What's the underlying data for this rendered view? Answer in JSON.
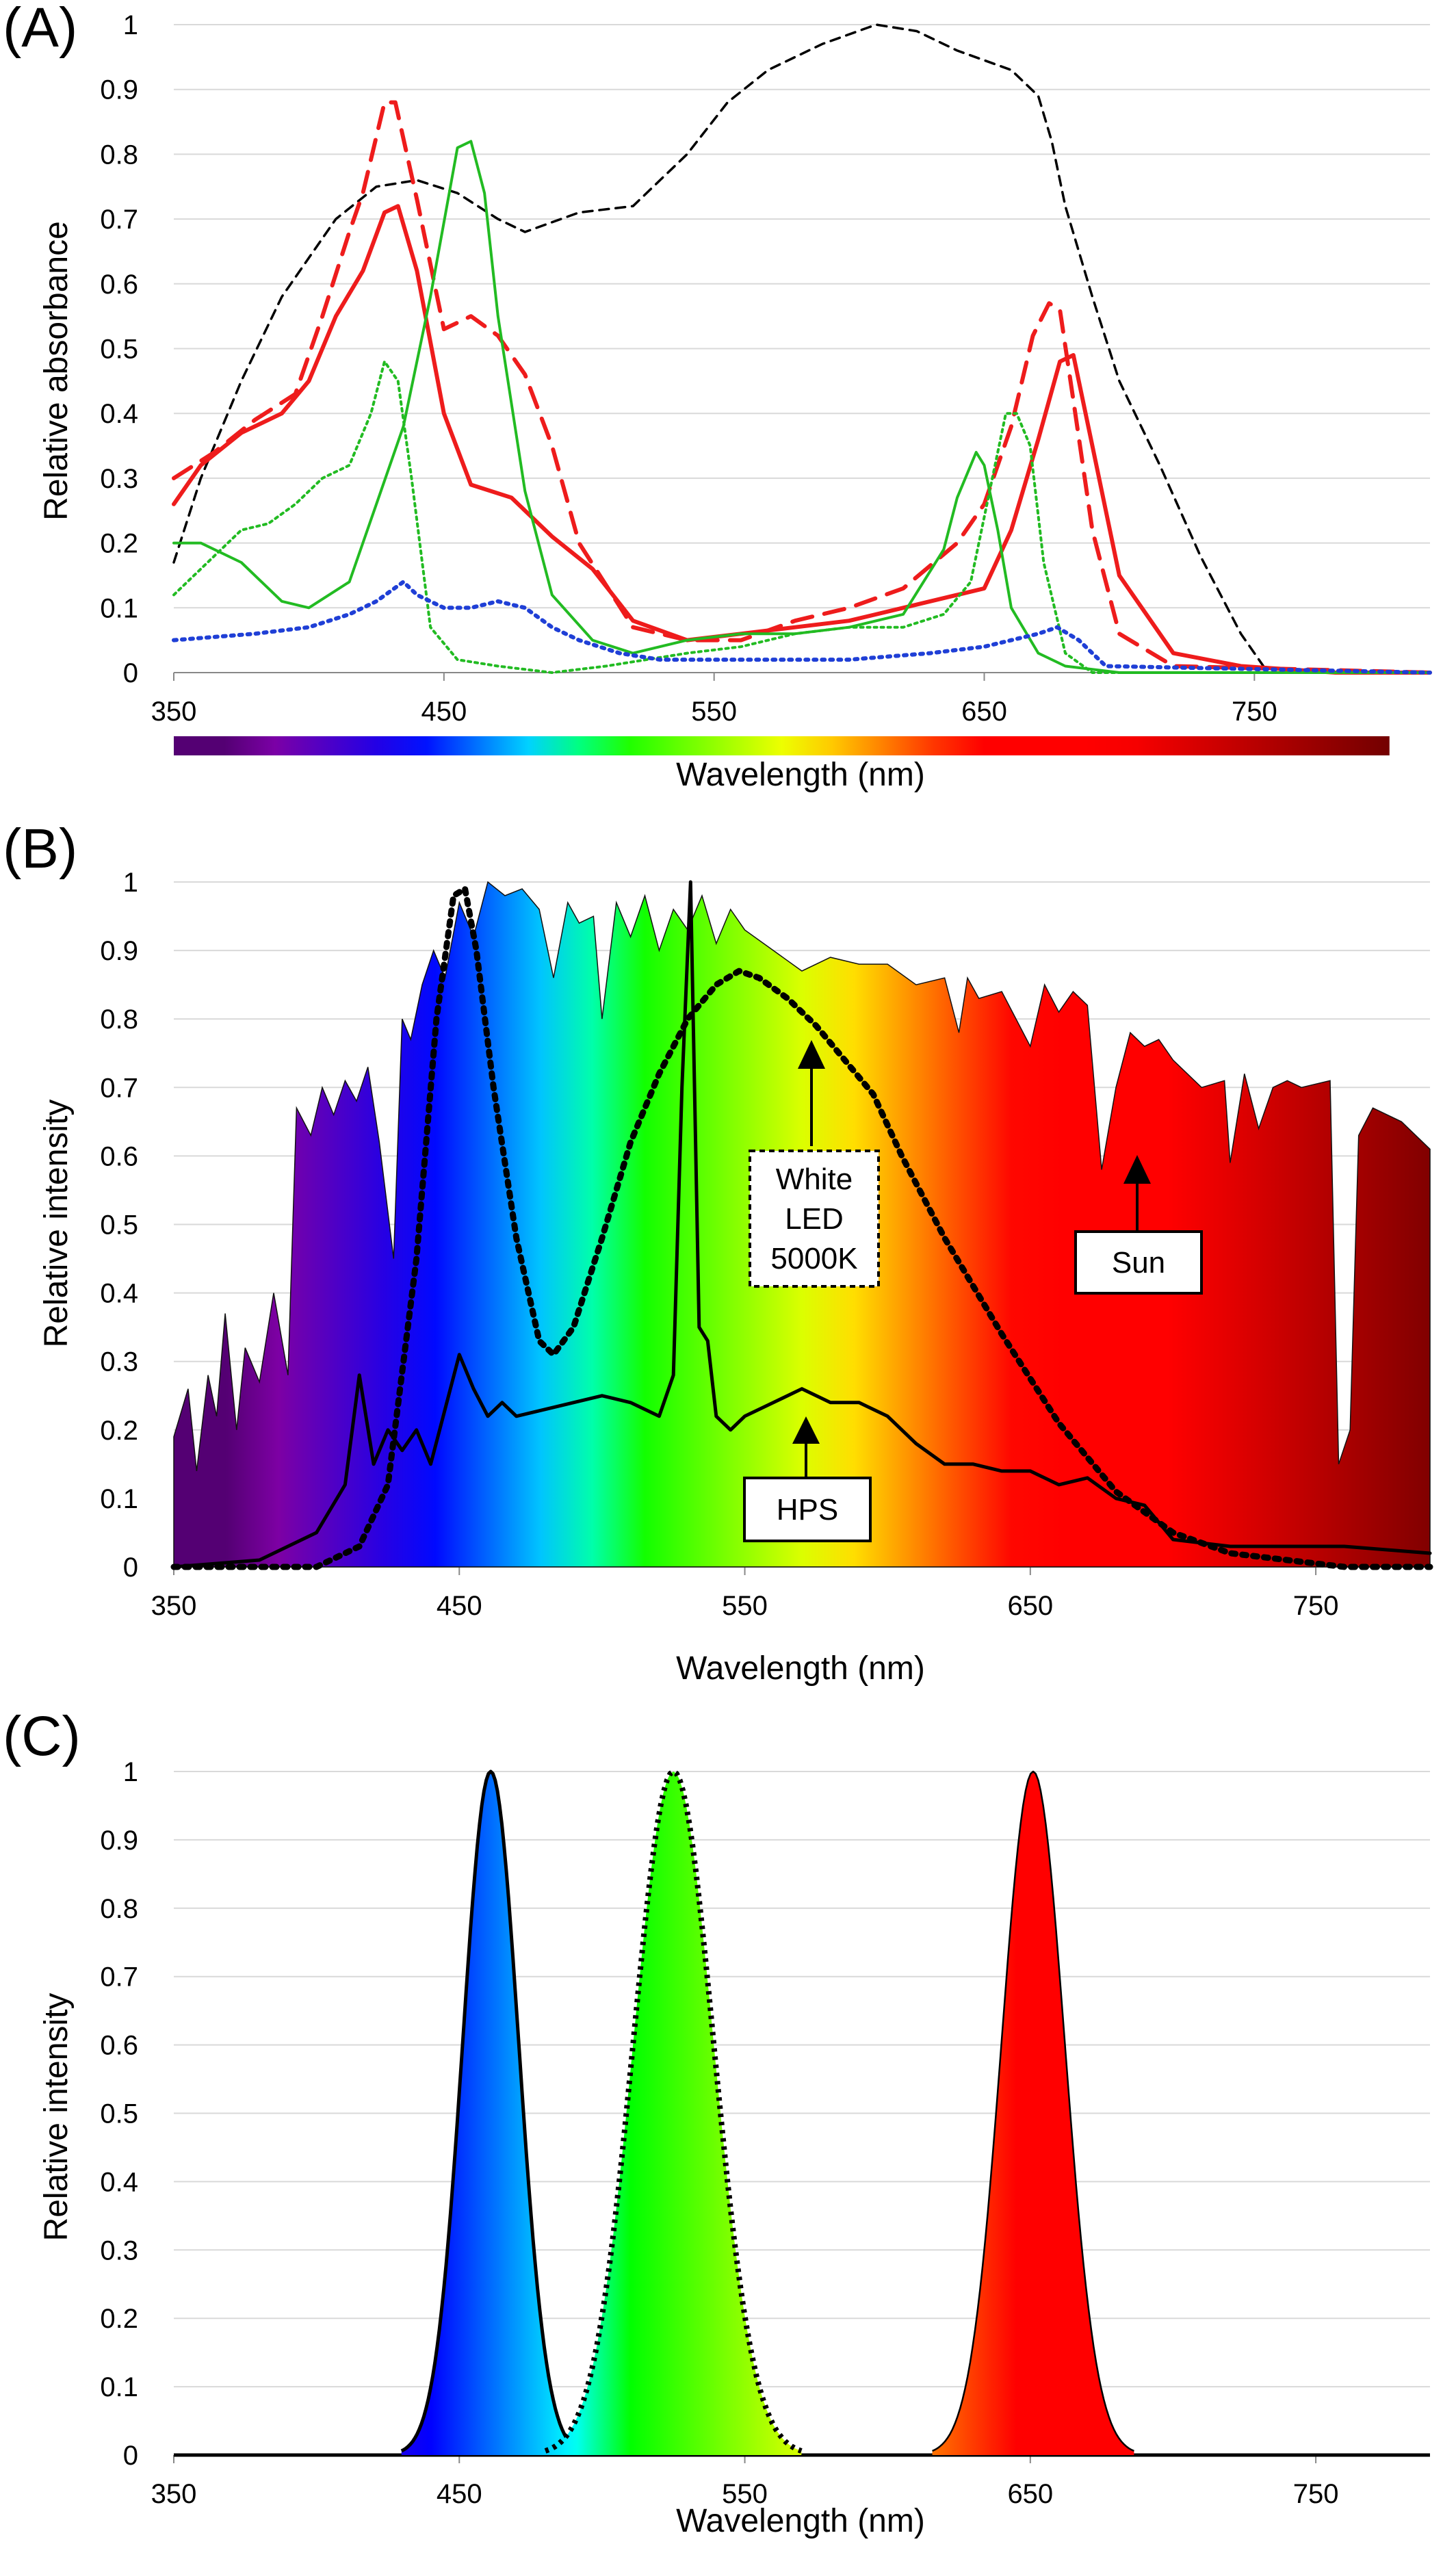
{
  "panels": [
    {
      "label": "(A)",
      "ylabel": "Relative absorbance",
      "xlabel": "Wavelength (nm)"
    },
    {
      "label": "(B)",
      "ylabel": "Relative intensity",
      "xlabel": "Wavelength (nm)",
      "annotations": {
        "white_led": [
          "White",
          "LED",
          "5000K"
        ],
        "sun": "Sun",
        "hps": "HPS"
      }
    },
    {
      "label": "(C)",
      "ylabel": "Relative intensity",
      "xlabel": "Wavelength (nm)"
    }
  ],
  "colors": {
    "red": "#ee1c1c",
    "green": "#22bb22",
    "blue": "#1f3fd6",
    "black": "#000000",
    "grid": "#d9d9d9"
  },
  "chart_data": [
    {
      "type": "line",
      "panel": "A",
      "title": "",
      "xlabel": "Wavelength (nm)",
      "ylabel": "Relative absorbance",
      "xlim": [
        350,
        815
      ],
      "ylim": [
        0,
        1
      ],
      "xticks": [
        350,
        450,
        550,
        650,
        750
      ],
      "yticks": [
        0,
        0.1,
        0.2,
        0.3,
        0.4,
        0.5,
        0.6,
        0.7,
        0.8,
        0.9,
        1
      ],
      "grid": "horizontal",
      "colorbar": [
        350,
        800
      ],
      "series": [
        {
          "style": "black-dashed",
          "x": [
            350,
            360,
            375,
            390,
            410,
            425,
            440,
            455,
            470,
            480,
            500,
            520,
            540,
            555,
            570,
            590,
            610,
            625,
            640,
            660,
            670,
            675,
            680,
            690,
            700,
            715,
            730,
            745,
            755
          ],
          "y": [
            0.17,
            0.3,
            0.45,
            0.58,
            0.7,
            0.75,
            0.76,
            0.74,
            0.7,
            0.68,
            0.71,
            0.72,
            0.8,
            0.88,
            0.93,
            0.97,
            1.0,
            0.99,
            0.96,
            0.93,
            0.89,
            0.82,
            0.72,
            0.58,
            0.45,
            0.32,
            0.18,
            0.06,
            0.0
          ]
        },
        {
          "style": "red-solid",
          "x": [
            350,
            360,
            375,
            390,
            400,
            410,
            420,
            428,
            433,
            440,
            450,
            460,
            475,
            490,
            505,
            520,
            540,
            560,
            580,
            600,
            620,
            640,
            650,
            660,
            670,
            678,
            683,
            690,
            700,
            720,
            745,
            780,
            815
          ],
          "y": [
            0.26,
            0.32,
            0.37,
            0.4,
            0.45,
            0.55,
            0.62,
            0.71,
            0.72,
            0.62,
            0.4,
            0.29,
            0.27,
            0.21,
            0.16,
            0.08,
            0.05,
            0.06,
            0.07,
            0.08,
            0.1,
            0.12,
            0.13,
            0.22,
            0.36,
            0.48,
            0.49,
            0.35,
            0.15,
            0.03,
            0.01,
            0.0,
            0.0
          ]
        },
        {
          "style": "red-dashed",
          "x": [
            350,
            365,
            380,
            395,
            405,
            415,
            420,
            428,
            432,
            440,
            450,
            460,
            470,
            480,
            490,
            500,
            520,
            540,
            560,
            580,
            600,
            620,
            640,
            650,
            660,
            668,
            674,
            678,
            683,
            690,
            700,
            720,
            815
          ],
          "y": [
            0.3,
            0.34,
            0.39,
            0.43,
            0.55,
            0.68,
            0.74,
            0.88,
            0.88,
            0.73,
            0.53,
            0.55,
            0.52,
            0.46,
            0.35,
            0.2,
            0.07,
            0.05,
            0.05,
            0.08,
            0.1,
            0.13,
            0.2,
            0.26,
            0.38,
            0.52,
            0.57,
            0.56,
            0.42,
            0.22,
            0.06,
            0.01,
            0.0
          ]
        },
        {
          "style": "green-solid",
          "x": [
            350,
            360,
            375,
            390,
            400,
            415,
            425,
            435,
            445,
            455,
            460,
            465,
            470,
            480,
            490,
            505,
            520,
            540,
            560,
            580,
            600,
            620,
            635,
            640,
            647,
            650,
            655,
            660,
            670,
            680,
            700,
            815
          ],
          "y": [
            0.2,
            0.2,
            0.17,
            0.11,
            0.1,
            0.14,
            0.26,
            0.38,
            0.58,
            0.81,
            0.82,
            0.74,
            0.55,
            0.28,
            0.12,
            0.05,
            0.03,
            0.05,
            0.06,
            0.06,
            0.07,
            0.09,
            0.19,
            0.27,
            0.34,
            0.32,
            0.22,
            0.1,
            0.03,
            0.01,
            0.0,
            0.0
          ]
        },
        {
          "style": "green-dotted",
          "x": [
            350,
            360,
            375,
            385,
            395,
            405,
            415,
            423,
            428,
            433,
            438,
            445,
            455,
            470,
            490,
            510,
            540,
            560,
            580,
            600,
            620,
            635,
            645,
            652,
            658,
            662,
            667,
            672,
            680,
            690,
            815
          ],
          "y": [
            0.12,
            0.16,
            0.22,
            0.23,
            0.26,
            0.3,
            0.32,
            0.4,
            0.48,
            0.45,
            0.3,
            0.07,
            0.02,
            0.01,
            0.0,
            0.01,
            0.03,
            0.04,
            0.06,
            0.07,
            0.07,
            0.09,
            0.14,
            0.28,
            0.4,
            0.4,
            0.35,
            0.17,
            0.03,
            0.0,
            0.0
          ]
        },
        {
          "style": "blue-dotted",
          "x": [
            350,
            380,
            400,
            415,
            425,
            435,
            440,
            450,
            460,
            470,
            480,
            490,
            500,
            515,
            530,
            560,
            600,
            630,
            650,
            660,
            670,
            677,
            685,
            695,
            815
          ],
          "y": [
            0.05,
            0.06,
            0.07,
            0.09,
            0.11,
            0.14,
            0.12,
            0.1,
            0.1,
            0.11,
            0.1,
            0.07,
            0.05,
            0.03,
            0.02,
            0.02,
            0.02,
            0.03,
            0.04,
            0.05,
            0.06,
            0.07,
            0.05,
            0.01,
            0.0
          ]
        }
      ]
    },
    {
      "type": "area",
      "panel": "B",
      "title": "",
      "xlabel": "Wavelength (nm)",
      "ylabel": "Relative intensity",
      "xlim": [
        350,
        790
      ],
      "ylim": [
        0,
        1
      ],
      "xticks": [
        350,
        450,
        550,
        650,
        750
      ],
      "yticks": [
        0,
        0.1,
        0.2,
        0.3,
        0.4,
        0.5,
        0.6,
        0.7,
        0.8,
        0.9,
        1
      ],
      "grid": "horizontal",
      "series": [
        {
          "name": "Sun",
          "style": "spectrum-fill",
          "x": [
            350,
            355,
            358,
            362,
            365,
            368,
            372,
            375,
            380,
            385,
            390,
            393,
            398,
            402,
            406,
            410,
            414,
            418,
            422,
            427,
            430,
            433,
            437,
            441,
            445,
            450,
            455,
            460,
            466,
            472,
            478,
            483,
            488,
            492,
            497,
            500,
            505,
            510,
            515,
            520,
            525,
            530,
            535,
            540,
            545,
            550,
            560,
            570,
            580,
            590,
            600,
            610,
            620,
            625,
            628,
            632,
            640,
            650,
            655,
            660,
            665,
            670,
            675,
            680,
            685,
            690,
            695,
            700,
            710,
            718,
            720,
            725,
            730,
            735,
            740,
            745,
            755,
            758,
            762,
            765,
            770,
            780,
            790
          ],
          "y": [
            0.19,
            0.26,
            0.14,
            0.28,
            0.22,
            0.37,
            0.2,
            0.32,
            0.27,
            0.4,
            0.28,
            0.67,
            0.63,
            0.7,
            0.66,
            0.71,
            0.68,
            0.73,
            0.62,
            0.45,
            0.8,
            0.77,
            0.85,
            0.9,
            0.86,
            0.97,
            0.92,
            1.0,
            0.98,
            0.99,
            0.96,
            0.86,
            0.97,
            0.94,
            0.95,
            0.8,
            0.97,
            0.92,
            0.98,
            0.9,
            0.96,
            0.93,
            0.98,
            0.91,
            0.96,
            0.93,
            0.9,
            0.87,
            0.89,
            0.88,
            0.88,
            0.85,
            0.86,
            0.78,
            0.86,
            0.83,
            0.84,
            0.76,
            0.85,
            0.81,
            0.84,
            0.82,
            0.58,
            0.7,
            0.78,
            0.76,
            0.77,
            0.74,
            0.7,
            0.71,
            0.59,
            0.72,
            0.64,
            0.7,
            0.71,
            0.7,
            0.71,
            0.15,
            0.2,
            0.63,
            0.67,
            0.65,
            0.61
          ]
        },
        {
          "name": "White LED 5000K",
          "style": "black-dotted",
          "x": [
            350,
            400,
            415,
            425,
            435,
            442,
            448,
            452,
            456,
            462,
            470,
            478,
            483,
            490,
            500,
            510,
            520,
            530,
            540,
            548,
            555,
            565,
            575,
            585,
            595,
            605,
            620,
            640,
            660,
            680,
            700,
            720,
            740,
            760,
            790
          ],
          "y": [
            0.0,
            0.0,
            0.03,
            0.12,
            0.45,
            0.8,
            0.98,
            0.99,
            0.9,
            0.7,
            0.48,
            0.33,
            0.31,
            0.35,
            0.48,
            0.62,
            0.72,
            0.8,
            0.85,
            0.87,
            0.86,
            0.83,
            0.79,
            0.74,
            0.69,
            0.6,
            0.48,
            0.34,
            0.21,
            0.11,
            0.05,
            0.02,
            0.01,
            0.0,
            0.0
          ]
        },
        {
          "name": "HPS",
          "style": "black-solid",
          "x": [
            350,
            380,
            400,
            410,
            415,
            420,
            425,
            430,
            435,
            440,
            445,
            450,
            455,
            460,
            465,
            470,
            480,
            490,
            500,
            510,
            520,
            525,
            528,
            531,
            534,
            537,
            540,
            545,
            550,
            560,
            570,
            580,
            590,
            600,
            610,
            620,
            630,
            640,
            650,
            660,
            670,
            680,
            690,
            700,
            720,
            740,
            760,
            790
          ],
          "y": [
            0.0,
            0.01,
            0.05,
            0.12,
            0.28,
            0.15,
            0.2,
            0.17,
            0.2,
            0.15,
            0.23,
            0.31,
            0.26,
            0.22,
            0.24,
            0.22,
            0.23,
            0.24,
            0.25,
            0.24,
            0.22,
            0.28,
            0.7,
            1.0,
            0.35,
            0.33,
            0.22,
            0.2,
            0.22,
            0.24,
            0.26,
            0.24,
            0.24,
            0.22,
            0.18,
            0.15,
            0.15,
            0.14,
            0.14,
            0.12,
            0.13,
            0.1,
            0.09,
            0.04,
            0.03,
            0.03,
            0.03,
            0.02
          ]
        }
      ]
    },
    {
      "type": "area",
      "panel": "C",
      "title": "",
      "xlabel": "Wavelength (nm)",
      "ylabel": "Relative intensity",
      "xlim": [
        350,
        790
      ],
      "ylim": [
        0,
        1
      ],
      "xticks": [
        350,
        450,
        550,
        650,
        750
      ],
      "yticks": [
        0,
        0.1,
        0.2,
        0.3,
        0.4,
        0.5,
        0.6,
        0.7,
        0.8,
        0.9,
        1
      ],
      "grid": "horizontal",
      "series": [
        {
          "style": "blue-peak-solid-outline",
          "center": 461,
          "fwhm": 23,
          "peak": 1.0
        },
        {
          "style": "green-peak-dotted-outline",
          "center": 525,
          "fwhm": 33,
          "peak": 1.0
        },
        {
          "style": "red-peak-thin-outline",
          "center": 651,
          "fwhm": 26,
          "peak": 1.0
        }
      ]
    }
  ]
}
